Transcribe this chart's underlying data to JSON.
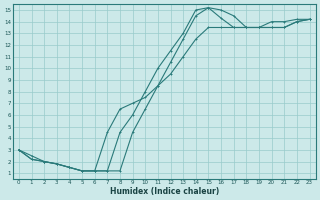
{
  "xlabel": "Humidex (Indice chaleur)",
  "xlim": [
    -0.5,
    23.5
  ],
  "ylim": [
    0.5,
    15.5
  ],
  "xticks": [
    0,
    1,
    2,
    3,
    4,
    5,
    6,
    7,
    8,
    9,
    10,
    11,
    12,
    13,
    14,
    15,
    16,
    17,
    18,
    19,
    20,
    21,
    22,
    23
  ],
  "yticks": [
    1,
    2,
    3,
    4,
    5,
    6,
    7,
    8,
    9,
    10,
    11,
    12,
    13,
    14,
    15
  ],
  "background_color": "#cce9e9",
  "grid_color": "#99cccc",
  "line_color": "#2a7a7a",
  "curve1_x": [
    0,
    1,
    2,
    3,
    4,
    5,
    6,
    7,
    8,
    9,
    10,
    11,
    12,
    13,
    14,
    15,
    16,
    17,
    18,
    19,
    20,
    21,
    22,
    23
  ],
  "curve1_y": [
    3.0,
    2.2,
    2.0,
    1.8,
    1.5,
    1.2,
    1.2,
    1.2,
    4.5,
    6.0,
    8.0,
    10.0,
    11.5,
    13.0,
    15.0,
    15.2,
    14.3,
    13.5,
    13.5,
    13.5,
    13.5,
    13.5,
    14.0,
    14.2
  ],
  "curve2_x": [
    0,
    1,
    2,
    3,
    4,
    5,
    6,
    7,
    8,
    9,
    10,
    11,
    12,
    13,
    14,
    15,
    16,
    17,
    18,
    19,
    20,
    21,
    22,
    23
  ],
  "curve2_y": [
    3.0,
    2.2,
    2.0,
    1.8,
    1.5,
    1.2,
    1.2,
    1.2,
    1.2,
    4.5,
    6.5,
    8.5,
    10.5,
    12.5,
    14.5,
    15.2,
    15.0,
    14.5,
    13.5,
    13.5,
    13.5,
    13.5,
    14.0,
    14.2
  ],
  "curve3_x": [
    0,
    1,
    2,
    3,
    4,
    5,
    6,
    7,
    8,
    9,
    10,
    11,
    12,
    13,
    14,
    15,
    16,
    17,
    18,
    19,
    20,
    21,
    22,
    23
  ],
  "curve3_y": [
    3.0,
    2.5,
    2.0,
    1.8,
    1.5,
    1.2,
    1.2,
    4.5,
    6.5,
    7.0,
    7.5,
    8.5,
    9.5,
    11.0,
    12.5,
    13.5,
    13.5,
    13.5,
    13.5,
    13.5,
    14.0,
    14.0,
    14.2,
    14.2
  ]
}
